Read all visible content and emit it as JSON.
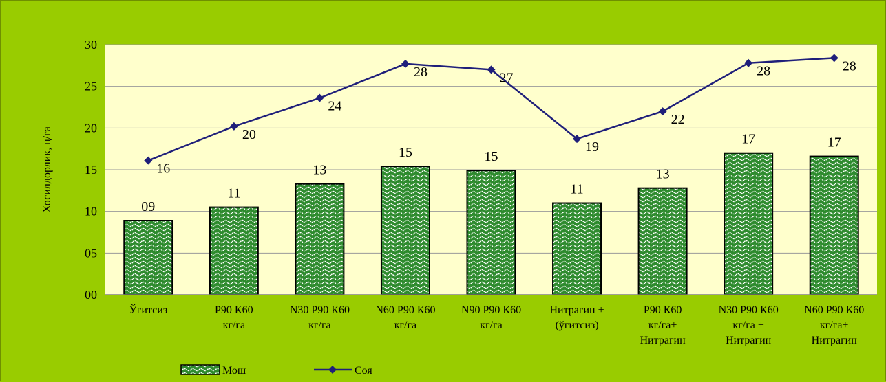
{
  "chart_data": {
    "type": "bar+line",
    "categories": [
      [
        "Ўғитсиз"
      ],
      [
        "Р90 К60",
        "кг/га"
      ],
      [
        "N30 Р90 К60",
        "кг/га"
      ],
      [
        "N60 Р90 К60",
        "кг/га"
      ],
      [
        "N90 Р90 К60",
        "кг/га"
      ],
      [
        "Нитрагин +",
        "(ўғитсиз)"
      ],
      [
        "Р90 К60",
        "кг/га+",
        "Нитрагин"
      ],
      [
        "N30 Р90 К60",
        "кг/га +",
        "Нитрагин"
      ],
      [
        "N60 Р90 К60",
        "кг/га+",
        "Нитрагин"
      ]
    ],
    "series": [
      {
        "name": "Мош",
        "kind": "bar",
        "values": [
          8.9,
          10.5,
          13.3,
          15.4,
          14.9,
          11.0,
          12.8,
          17.0,
          16.6
        ],
        "labels": [
          "09",
          "11",
          "13",
          "15",
          "15",
          "11",
          "13",
          "17",
          "17"
        ],
        "color": "#2e8b2e"
      },
      {
        "name": "Соя",
        "kind": "line",
        "values": [
          16.1,
          20.2,
          23.6,
          27.7,
          27.0,
          18.7,
          22.0,
          27.8,
          28.4
        ],
        "labels": [
          "16",
          "20",
          "24",
          "28",
          "27",
          "19",
          "22",
          "28",
          "28"
        ],
        "color": "#1f1f7a"
      }
    ],
    "ylabel": "Хосилдорлик, ц/га",
    "ylim": [
      0,
      30
    ],
    "yticks": [
      "00",
      "05",
      "10",
      "15",
      "20",
      "25",
      "30"
    ],
    "grid": true,
    "legend": "bottom-left",
    "plot_background": "#ffffcc",
    "background": "#99cc00"
  }
}
